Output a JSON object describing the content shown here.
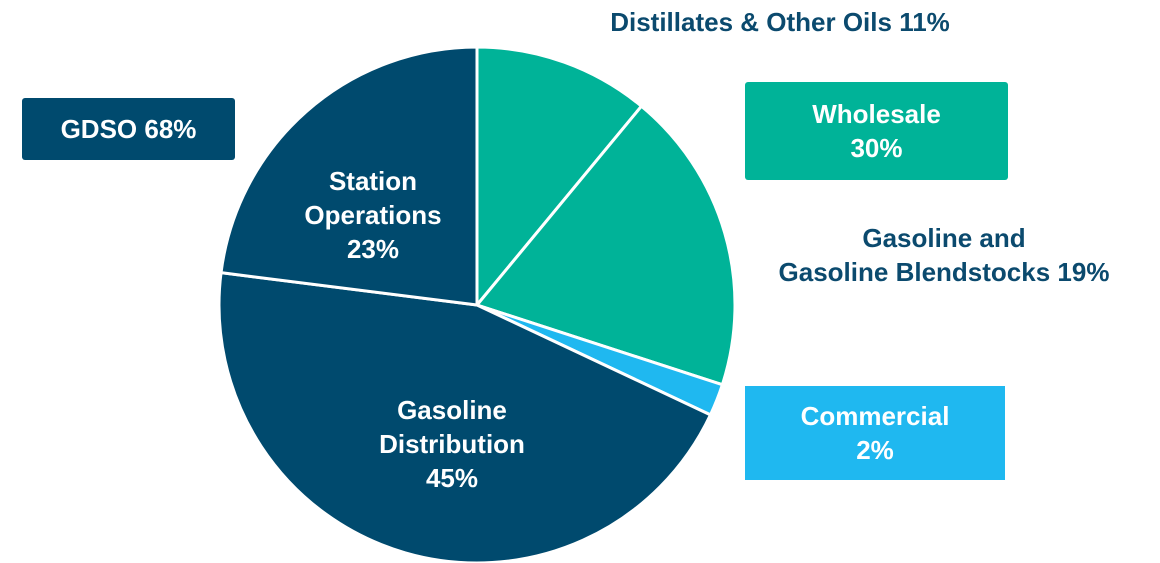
{
  "chart_data": {
    "type": "pie",
    "categories": [
      "Distillates & Other Oils",
      "Gasoline and Gasoline Blendstocks",
      "Commercial",
      "Gasoline Distribution",
      "Station Operations"
    ],
    "values": [
      11,
      19,
      2,
      45,
      23
    ],
    "value_labels": [
      "11%",
      "19%",
      "2%",
      "45%",
      "23%"
    ],
    "colors": [
      "#00b398",
      "#00b398",
      "#1fb8f0",
      "#004a6e",
      "#004a6e"
    ],
    "groups": [
      {
        "label": "GDSO",
        "value": 68,
        "value_label": "68%",
        "color": "#004a6e"
      },
      {
        "label": "Wholesale",
        "value": 30,
        "value_label": "30%",
        "color": "#00b398"
      }
    ]
  }
}
